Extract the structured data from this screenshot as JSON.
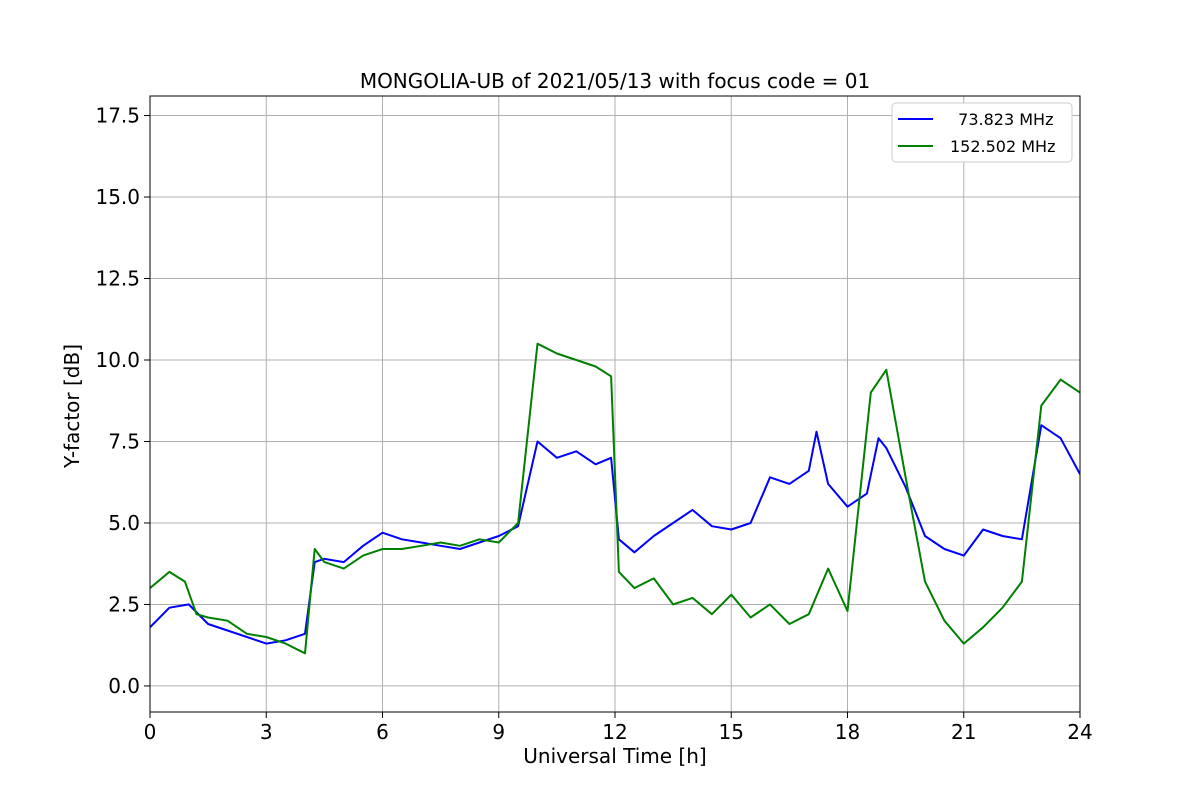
{
  "chart_data": {
    "type": "line",
    "title": "MONGOLIA-UB of 2021/05/13 with focus code = 01",
    "xlabel": "Universal Time [h]",
    "ylabel": "Y-factor [dB]",
    "xlim": [
      0,
      24
    ],
    "ylim": [
      -0.8,
      18.1
    ],
    "xticks": [
      0,
      3,
      6,
      9,
      12,
      15,
      18,
      21,
      24
    ],
    "xtick_labels": [
      "0",
      "3",
      "6",
      "9",
      "12",
      "15",
      "18",
      "21",
      "24"
    ],
    "yticks": [
      0.0,
      2.5,
      5.0,
      7.5,
      10.0,
      12.5,
      15.0,
      17.5
    ],
    "ytick_labels": [
      "0.0",
      "2.5",
      "5.0",
      "7.5",
      "10.0",
      "12.5",
      "15.0",
      "17.5"
    ],
    "grid": true,
    "legend_position": "top-right",
    "series": [
      {
        "name": "73.823 MHz",
        "legend_label": "  73.823 MHz",
        "color": "#0000ff",
        "x": [
          0,
          0.5,
          1,
          1.5,
          2,
          2.5,
          3,
          3.5,
          4,
          4.25,
          4.5,
          5,
          5.5,
          6,
          6.5,
          7,
          7.5,
          8,
          8.5,
          9,
          9.5,
          10,
          10.5,
          11,
          11.5,
          11.9,
          12.1,
          12.5,
          13,
          13.5,
          14,
          14.5,
          15,
          15.5,
          16,
          16.5,
          17,
          17.2,
          17.5,
          18,
          18.5,
          18.8,
          19,
          19.5,
          20,
          20.5,
          21,
          21.5,
          22,
          22.5,
          23,
          23.5,
          24
        ],
        "y": [
          1.8,
          2.4,
          2.5,
          1.9,
          1.7,
          1.5,
          1.3,
          1.4,
          1.6,
          3.8,
          3.9,
          3.8,
          4.3,
          4.7,
          4.5,
          4.4,
          4.3,
          4.2,
          4.4,
          4.6,
          4.9,
          7.5,
          7.0,
          7.2,
          6.8,
          7.0,
          4.5,
          4.1,
          4.6,
          5.0,
          5.4,
          4.9,
          4.8,
          5.0,
          6.4,
          6.2,
          6.6,
          7.8,
          6.2,
          5.5,
          5.9,
          7.6,
          7.3,
          6.1,
          4.6,
          4.2,
          4.0,
          4.8,
          4.6,
          4.5,
          8.0,
          7.6,
          6.5
        ]
      },
      {
        "name": "152.502 MHz",
        "legend_label": "152.502 MHz",
        "color": "#008000",
        "x": [
          0,
          0.5,
          0.9,
          1.2,
          1.5,
          2,
          2.5,
          3,
          3.5,
          4,
          4.25,
          4.5,
          5,
          5.5,
          6,
          6.5,
          7,
          7.5,
          8,
          8.5,
          9,
          9.5,
          10,
          10.5,
          11,
          11.5,
          11.9,
          12.1,
          12.5,
          13,
          13.5,
          14,
          14.5,
          15,
          15.5,
          16,
          16.5,
          17,
          17.5,
          18,
          18.6,
          19,
          19.5,
          20,
          20.5,
          21,
          21.5,
          22,
          22.5,
          23,
          23.5,
          24
        ],
        "y": [
          3.0,
          3.5,
          3.2,
          2.2,
          2.1,
          2.0,
          1.6,
          1.5,
          1.3,
          1.0,
          4.2,
          3.8,
          3.6,
          4.0,
          4.2,
          4.2,
          4.3,
          4.4,
          4.3,
          4.5,
          4.4,
          5.0,
          10.5,
          10.2,
          10.0,
          9.8,
          9.5,
          3.5,
          3.0,
          3.3,
          2.5,
          2.7,
          2.2,
          2.8,
          2.1,
          2.5,
          1.9,
          2.2,
          3.6,
          2.3,
          9.0,
          9.7,
          6.4,
          3.2,
          2.0,
          1.3,
          1.8,
          2.4,
          3.2,
          8.6,
          9.4,
          9.0
        ]
      }
    ]
  }
}
